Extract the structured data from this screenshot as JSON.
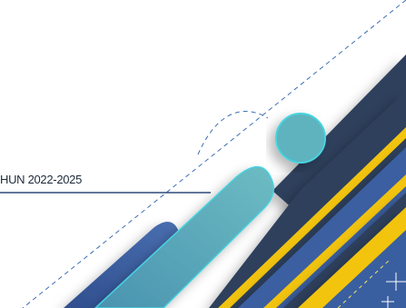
{
  "caption": "HUN 2022-2025",
  "colors": {
    "navy": "#2d3f5c",
    "blue": "#3f66a6",
    "yellow": "#f2c40f",
    "teal": "#5fb3be",
    "teal_outline": "#46d3df",
    "line": "#2c4a78"
  }
}
